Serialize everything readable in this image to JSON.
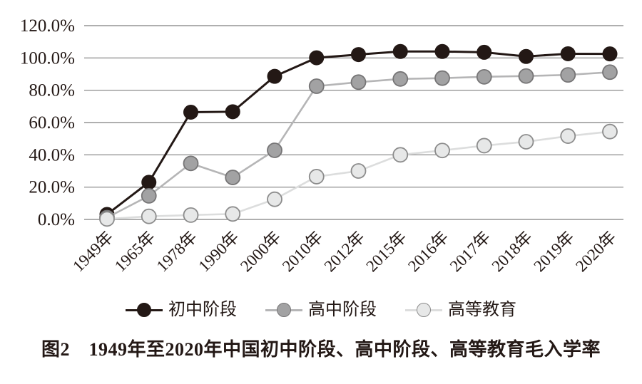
{
  "figure": {
    "caption": "图2　1949年至2020年中国初中阶段、高中阶段、高等教育毛入学率"
  },
  "chart_data": {
    "type": "line",
    "title": "",
    "xlabel": "",
    "ylabel": "",
    "ylim": [
      0,
      120
    ],
    "ytick_step": 20,
    "yticks": [
      "0.0%",
      "20.0%",
      "40.0%",
      "60.0%",
      "80.0%",
      "100.0%",
      "120.0%"
    ],
    "grid": "horizontal",
    "legend_position": "bottom",
    "categories": [
      "1949年",
      "1965年",
      "1978年",
      "1990年",
      "2000年",
      "2010年",
      "2012年",
      "2015年",
      "2016年",
      "2017年",
      "2018年",
      "2019年",
      "2020年"
    ],
    "series": [
      {
        "id": "junior-secondary",
        "name": "初中阶段",
        "values": [
          3.1,
          23.0,
          66.4,
          66.7,
          88.6,
          100.1,
          102.1,
          104.0,
          104.0,
          103.5,
          100.9,
          102.6,
          102.5
        ],
        "line_color": "#231815",
        "marker_fill": "#231815",
        "marker_stroke": "#231815"
      },
      {
        "id": "senior-secondary",
        "name": "高中阶段",
        "values": [
          1.1,
          14.6,
          34.7,
          26.0,
          42.8,
          82.5,
          85.0,
          87.0,
          87.5,
          88.3,
          88.8,
          89.5,
          91.2
        ],
        "line_color": "#b5b5b6",
        "marker_fill": "#a2a2a3",
        "marker_stroke": "#767576"
      },
      {
        "id": "higher-education",
        "name": "高等教育",
        "values": [
          0.3,
          1.9,
          2.7,
          3.4,
          12.5,
          26.5,
          30.0,
          40.0,
          42.7,
          45.7,
          48.1,
          51.6,
          54.4
        ],
        "line_color": "#dcdddd",
        "marker_fill": "#e7e8e8",
        "marker_stroke": "#8c8c8c"
      }
    ]
  }
}
